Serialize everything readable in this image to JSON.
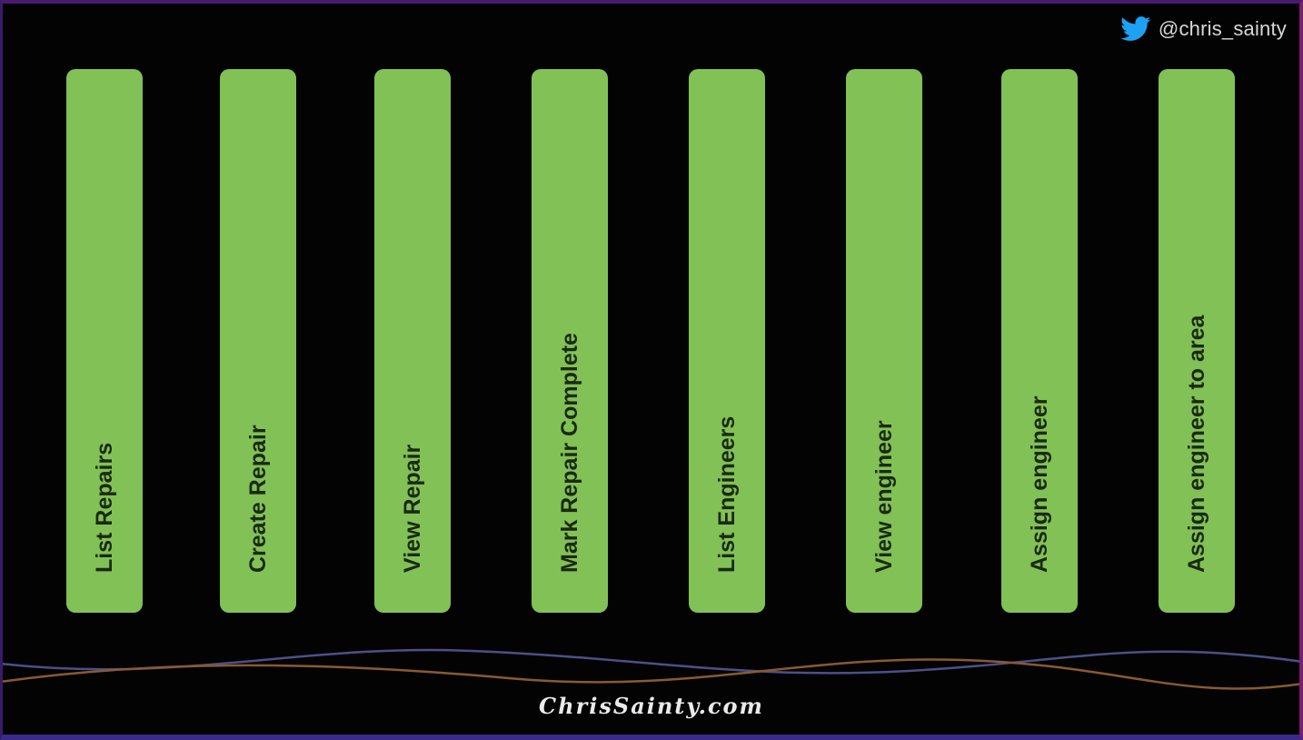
{
  "handle": {
    "icon": "twitter-bird-icon",
    "text": "@chris_sainty"
  },
  "columns": [
    {
      "label": "List Repairs"
    },
    {
      "label": "Create Repair"
    },
    {
      "label": "View Repair"
    },
    {
      "label": "Mark Repair Complete"
    },
    {
      "label": "List Engineers"
    },
    {
      "label": "View engineer"
    },
    {
      "label": "Assign engineer"
    },
    {
      "label": "Assign engineer to area"
    }
  ],
  "footer": {
    "text": "ChrisSainty.com"
  },
  "colors": {
    "column": "#82c156",
    "background": "#030303",
    "twitter": "#1da1f2",
    "wave_blue": "#4d4f8a",
    "wave_orange": "#8a5a30"
  }
}
